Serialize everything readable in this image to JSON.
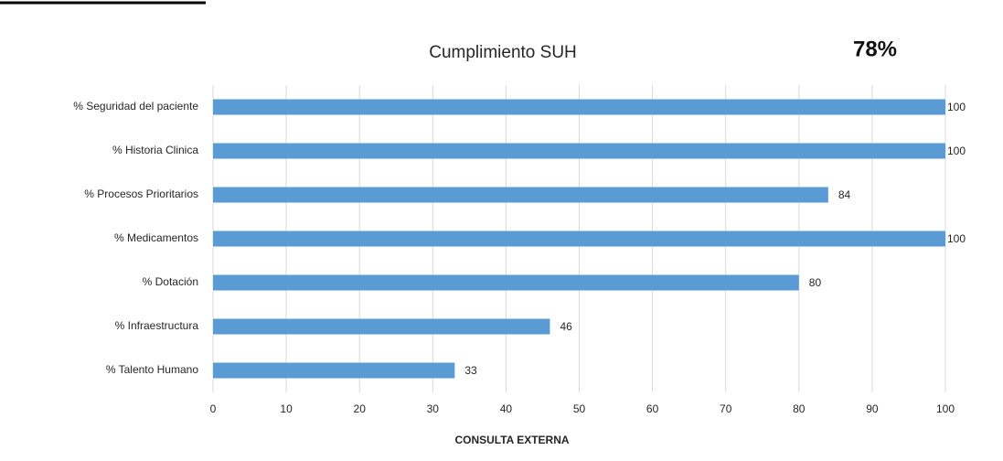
{
  "chart_data": {
    "type": "bar",
    "orientation": "horizontal",
    "title": "Cumplimiento SUH",
    "annotation": "78%",
    "xlabel": "CONSULTA EXTERNA",
    "categories": [
      "% Seguridad del paciente",
      "% Historia Clinica",
      "% Procesos Prioritarios",
      "% Medicamentos",
      "% Dotación",
      "% Infraestructura",
      "% Talento Humano"
    ],
    "values": [
      100,
      100,
      84,
      100,
      80,
      46,
      33
    ],
    "color": "#5b9bd5",
    "xlim": [
      0,
      100
    ],
    "xticks": [
      0,
      10,
      20,
      30,
      40,
      50,
      60,
      70,
      80,
      90,
      100
    ],
    "grid": true
  }
}
